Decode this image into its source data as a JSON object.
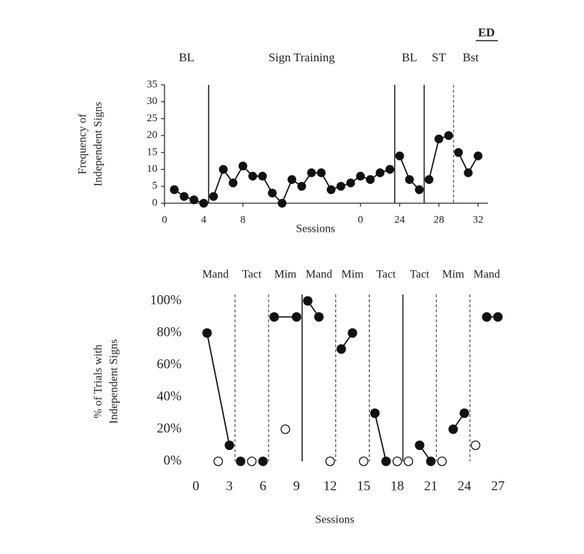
{
  "chart_data": [
    {
      "type": "line",
      "annotation": "ED",
      "phase_labels": [
        "BL",
        "Sign Training",
        "BL",
        "ST",
        "Bst"
      ],
      "phase_lines": [
        {
          "x": 4.5,
          "style": "solid"
        },
        {
          "x": 23.5,
          "style": "solid"
        },
        {
          "x": 26.5,
          "style": "solid"
        },
        {
          "x": 29.5,
          "style": "dashed"
        }
      ],
      "y_label": [
        "Frequency of",
        "Independent Signs"
      ],
      "x_label": "Sessions",
      "xlim": [
        0,
        33
      ],
      "xticks": [
        0,
        4,
        8,
        {
          "value": 20,
          "label": "0"
        },
        24,
        28,
        32
      ],
      "ylim": [
        0,
        35
      ],
      "yticks": [
        0,
        5,
        10,
        15,
        20,
        25,
        30,
        35
      ],
      "axis_lines": true,
      "color": "#111111",
      "series": [
        {
          "marker": "filled",
          "connected": true,
          "x": [
            1,
            2,
            3,
            4
          ],
          "values": [
            4,
            2,
            1,
            0
          ]
        },
        {
          "marker": "filled",
          "connected": true,
          "x": [
            5,
            6,
            7,
            8,
            9,
            10,
            11,
            12,
            13,
            14,
            15,
            16,
            17,
            18,
            19,
            20,
            21,
            22,
            23
          ],
          "values": [
            2,
            10,
            6,
            11,
            8,
            8,
            3,
            0,
            7,
            5,
            9,
            9,
            4,
            5,
            6,
            8,
            7,
            9,
            10
          ]
        },
        {
          "marker": "filled",
          "connected": true,
          "x": [
            24,
            25,
            26
          ],
          "values": [
            14,
            7,
            4
          ]
        },
        {
          "marker": "filled",
          "connected": true,
          "x": [
            27,
            28,
            29
          ],
          "values": [
            7,
            19,
            20
          ]
        },
        {
          "marker": "filled",
          "connected": true,
          "x": [
            30,
            31,
            32
          ],
          "values": [
            15,
            9,
            14
          ]
        }
      ]
    },
    {
      "type": "line",
      "phase_labels": [
        "Mand",
        "Tact",
        "Mim",
        "Mand",
        "Mim",
        "Tact",
        "Tact",
        "Mim",
        "Mand"
      ],
      "phase_lines": [
        {
          "x": 3.5,
          "style": "dashed"
        },
        {
          "x": 6.5,
          "style": "dashed"
        },
        {
          "x": 9.5,
          "style": "solid"
        },
        {
          "x": 12.5,
          "style": "dashed"
        },
        {
          "x": 15.5,
          "style": "dashed"
        },
        {
          "x": 18.5,
          "style": "solid"
        },
        {
          "x": 21.5,
          "style": "dashed"
        },
        {
          "x": 24.5,
          "style": "dashed"
        }
      ],
      "y_label": [
        "% of Trials with",
        "Independent Signs"
      ],
      "x_label": "Sessions",
      "xlim": [
        0,
        27.5
      ],
      "xticks": [
        0,
        3,
        6,
        9,
        12,
        15,
        18,
        21,
        24,
        27
      ],
      "ylim": [
        0,
        100
      ],
      "yticks": [
        {
          "value": 0,
          "label": "0%"
        },
        {
          "value": 20,
          "label": "20%"
        },
        {
          "value": 40,
          "label": "40%"
        },
        {
          "value": 60,
          "label": "60%"
        },
        {
          "value": 80,
          "label": "80%"
        },
        {
          "value": 100,
          "label": "100%"
        }
      ],
      "axis_lines": false,
      "color": "#111111",
      "series": [
        {
          "marker": "filled",
          "connected": true,
          "x": [
            1,
            3
          ],
          "values": [
            80,
            10
          ]
        },
        {
          "marker": "filled",
          "connected": true,
          "x": [
            4
          ],
          "values": [
            0
          ]
        },
        {
          "marker": "filled",
          "connected": true,
          "x": [
            6
          ],
          "values": [
            0
          ]
        },
        {
          "marker": "filled",
          "connected": true,
          "x": [
            7,
            9
          ],
          "values": [
            90,
            90
          ]
        },
        {
          "marker": "filled",
          "connected": true,
          "x": [
            10,
            11
          ],
          "values": [
            100,
            90
          ]
        },
        {
          "marker": "filled",
          "connected": true,
          "x": [
            13,
            14
          ],
          "values": [
            70,
            80
          ]
        },
        {
          "marker": "filled",
          "connected": true,
          "x": [
            16,
            17
          ],
          "values": [
            30,
            0
          ]
        },
        {
          "marker": "filled",
          "connected": true,
          "x": [
            20,
            21
          ],
          "values": [
            10,
            0
          ]
        },
        {
          "marker": "filled",
          "connected": true,
          "x": [
            23,
            24
          ],
          "values": [
            20,
            30
          ]
        },
        {
          "marker": "filled",
          "connected": true,
          "x": [
            26,
            27
          ],
          "values": [
            90,
            90
          ]
        },
        {
          "marker": "open",
          "connected": false,
          "x": [
            2,
            5,
            8,
            12,
            15,
            18,
            19,
            22,
            25
          ],
          "values": [
            0,
            0,
            20,
            0,
            0,
            0,
            0,
            0,
            10
          ]
        }
      ]
    }
  ]
}
